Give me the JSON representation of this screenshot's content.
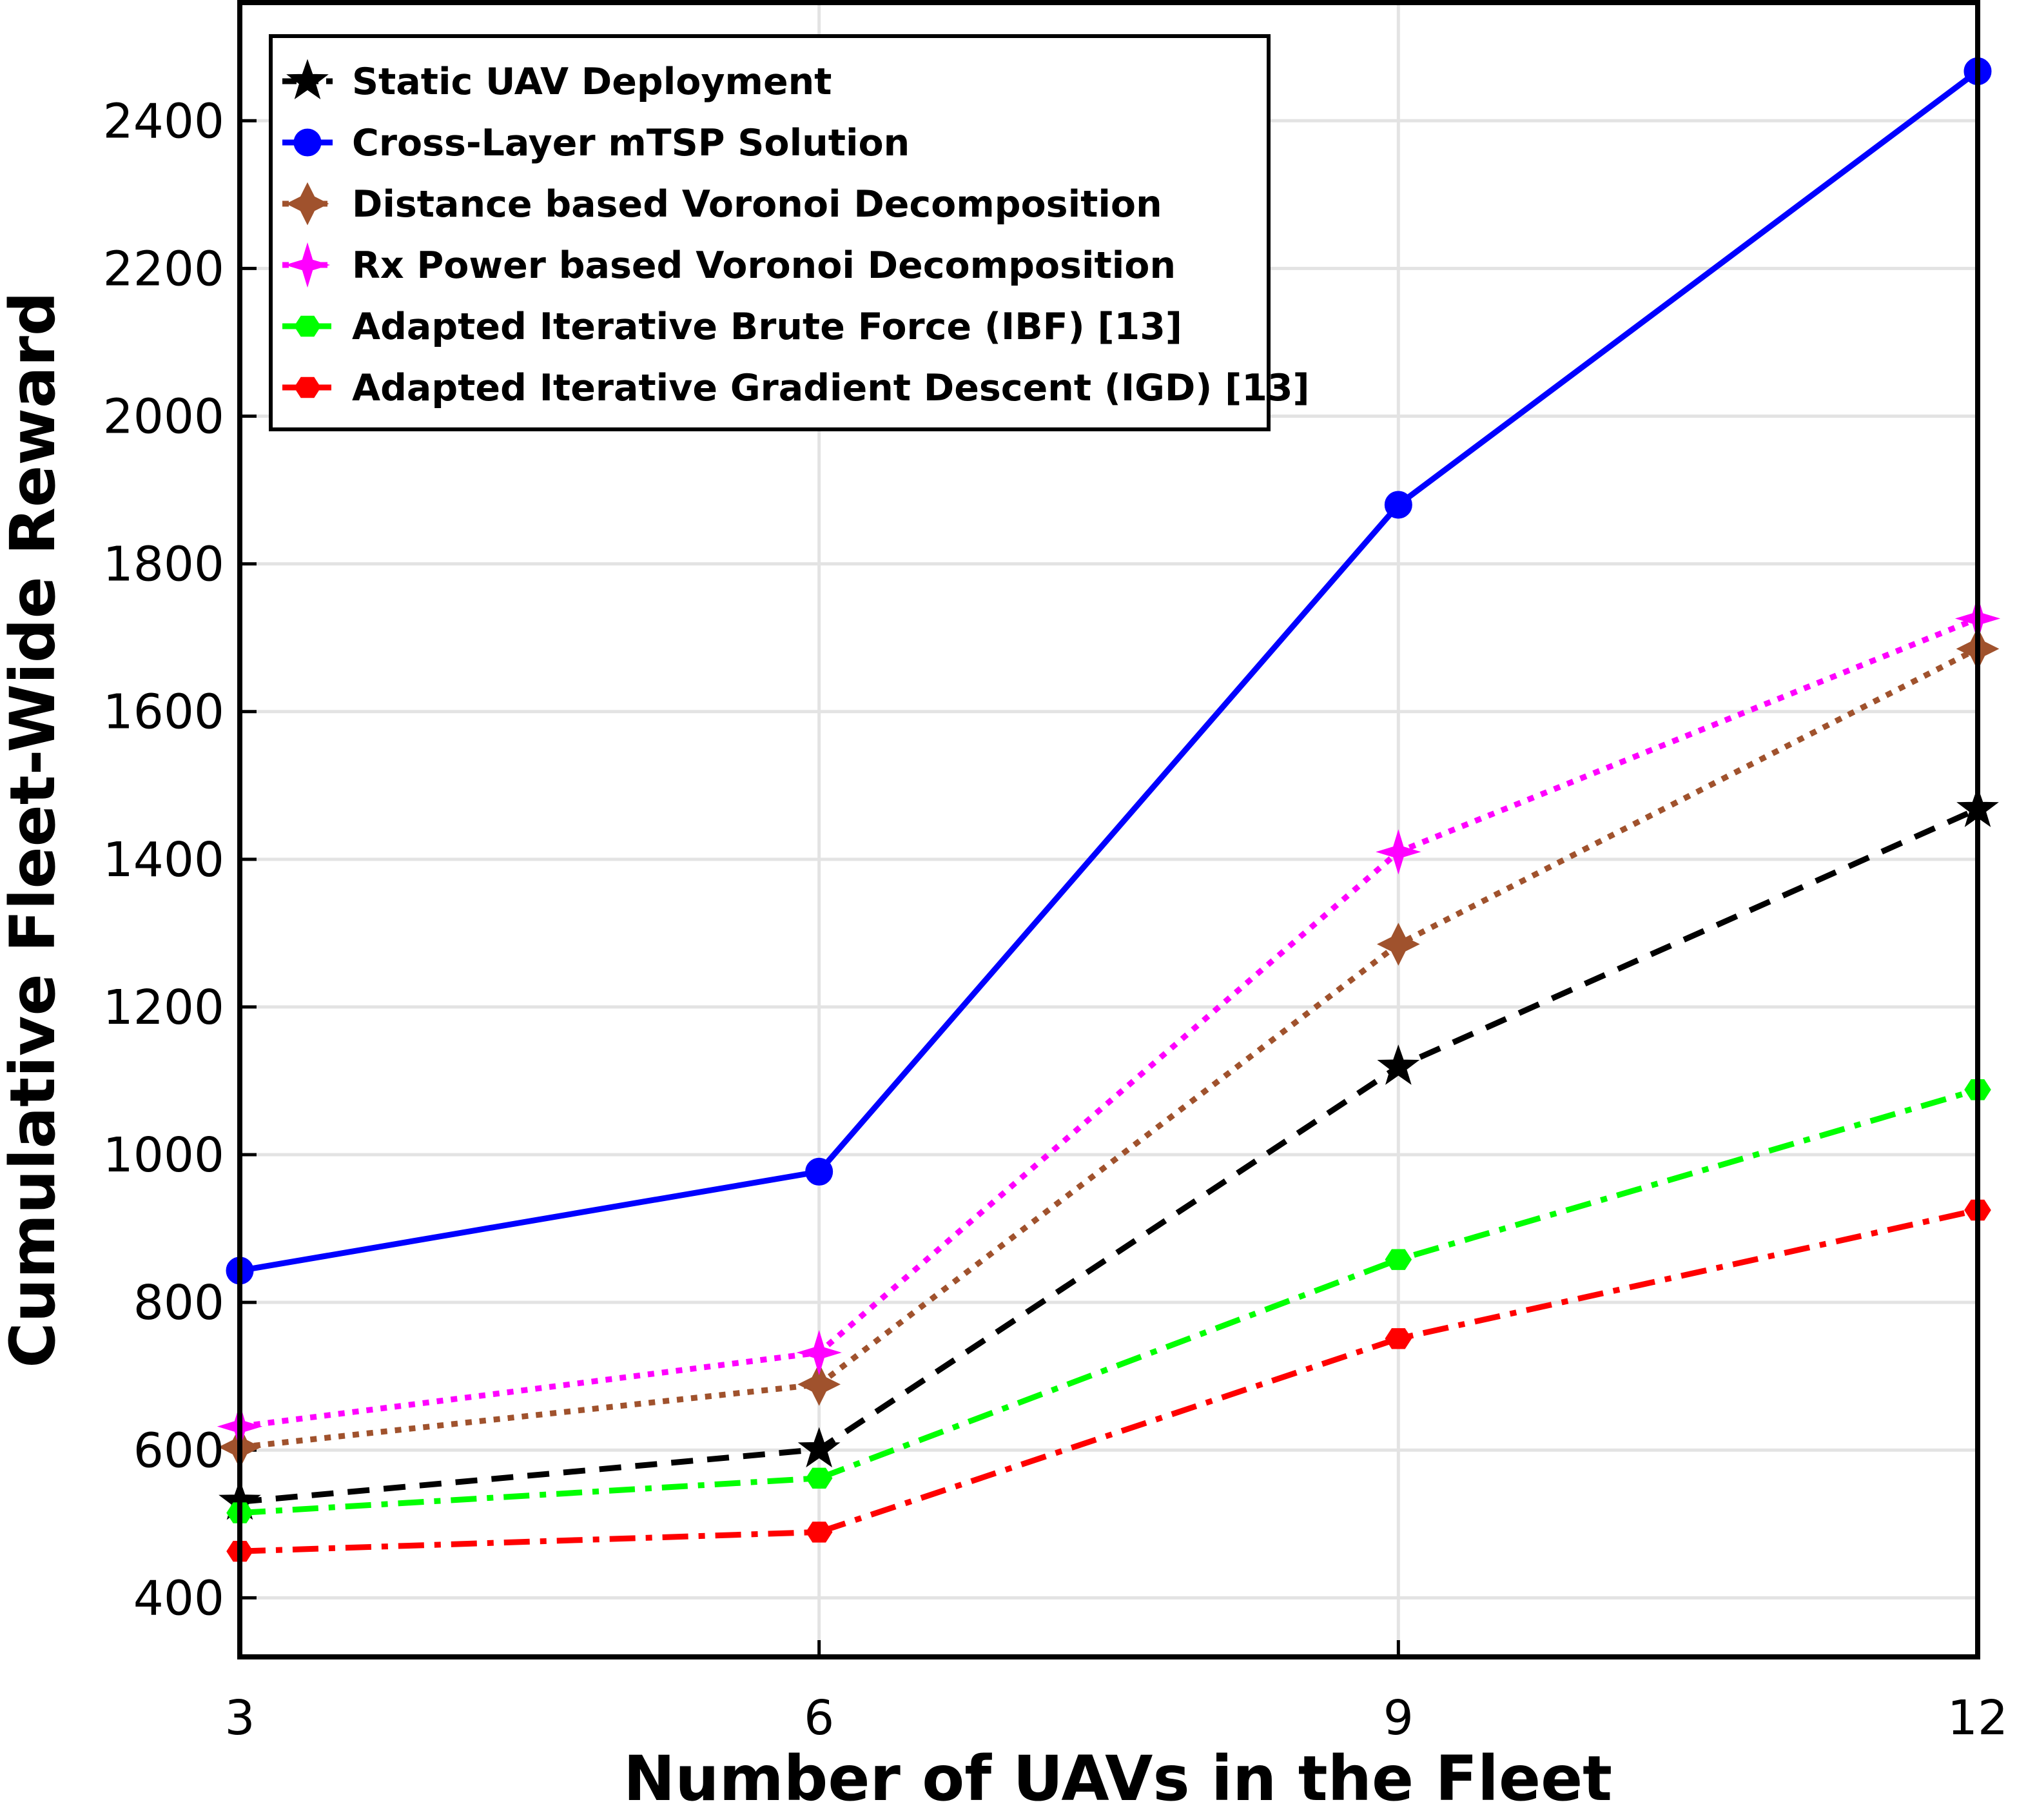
{
  "chart_data": {
    "type": "line",
    "xlabel": "Number of UAVs in the Fleet",
    "ylabel": "Cumulative Fleet-Wide Reward",
    "x": [
      3,
      6,
      9,
      12
    ],
    "xlim": [
      3,
      12
    ],
    "ylim": [
      320,
      2560
    ],
    "xticks": [
      3,
      6,
      9,
      12
    ],
    "yticks": [
      400,
      600,
      800,
      1000,
      1200,
      1400,
      1600,
      1800,
      2000,
      2200,
      2400
    ],
    "grid": true,
    "legend_position": "top-left",
    "series": [
      {
        "name": "Static UAV Deployment",
        "values": [
          530,
          601,
          1119,
          1468
        ],
        "color": "#000000",
        "style": "dashed",
        "marker": "star"
      },
      {
        "name": "Cross-Layer mTSP Solution",
        "values": [
          843,
          977,
          1880,
          2467
        ],
        "color": "#0000ff",
        "style": "solid",
        "marker": "circle"
      },
      {
        "name": "Distance based Voronoi Decomposition",
        "values": [
          604,
          689,
          1285,
          1685
        ],
        "color": "#a0522d",
        "style": "dotted",
        "marker": "diamond"
      },
      {
        "name": "Rx Power based Voronoi Decomposition",
        "values": [
          632,
          732,
          1410,
          1726
        ],
        "color": "#ff00ff",
        "style": "dotted",
        "marker": "four-point-star"
      },
      {
        "name": "Adapted Iterative Brute Force (IBF) [13]",
        "values": [
          515,
          562,
          858,
          1088
        ],
        "color": "#00ff00",
        "style": "dashdot",
        "marker": "hexagon"
      },
      {
        "name": "Adapted Iterative Gradient Descent (IGD) [13]",
        "values": [
          463,
          489,
          751,
          925
        ],
        "color": "#ff0000",
        "style": "dashdot",
        "marker": "hexagon"
      }
    ]
  }
}
